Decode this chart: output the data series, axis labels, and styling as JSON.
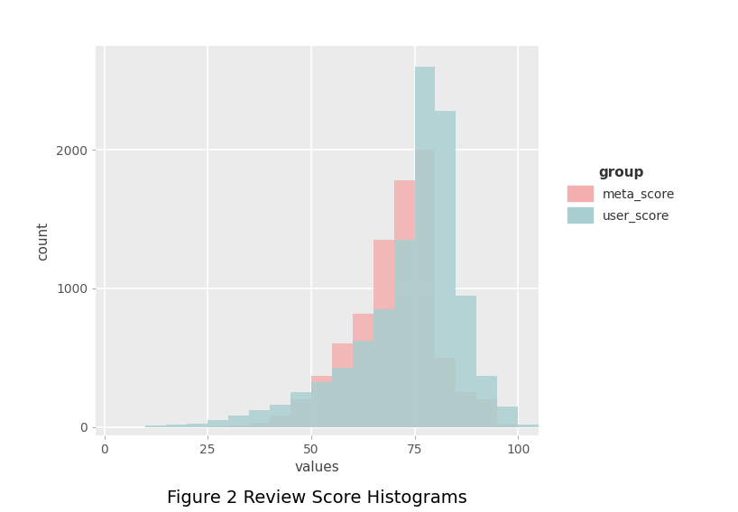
{
  "title": "Figure 2 Review Score Histograms",
  "xlabel": "values",
  "ylabel": "count",
  "legend_title": "group",
  "legend_labels": [
    "meta_score",
    "user_score"
  ],
  "meta_color": "#F4AEAE",
  "user_color": "#AACFD0",
  "meta_alpha": 0.85,
  "user_alpha": 0.85,
  "bg_color": "#EBEBEB",
  "grid_color": "#FFFFFF",
  "xlim": [
    -2,
    105
  ],
  "ylim": [
    -60,
    2750
  ],
  "xticks": [
    0,
    25,
    50,
    75,
    100
  ],
  "yticks": [
    0,
    1000,
    2000
  ],
  "bin_edges": [
    0,
    5,
    10,
    15,
    20,
    25,
    30,
    35,
    40,
    45,
    50,
    55,
    60,
    65,
    70,
    75,
    80,
    85,
    90,
    95,
    100,
    105
  ],
  "meta_counts": [
    0,
    0,
    0,
    0,
    0,
    2,
    8,
    30,
    80,
    200,
    370,
    600,
    820,
    1350,
    1780,
    2000,
    500,
    250,
    200,
    25,
    0
  ],
  "user_counts": [
    0,
    0,
    10,
    15,
    25,
    50,
    80,
    120,
    160,
    250,
    320,
    430,
    620,
    850,
    1350,
    2600,
    2280,
    950,
    370,
    150,
    20
  ]
}
